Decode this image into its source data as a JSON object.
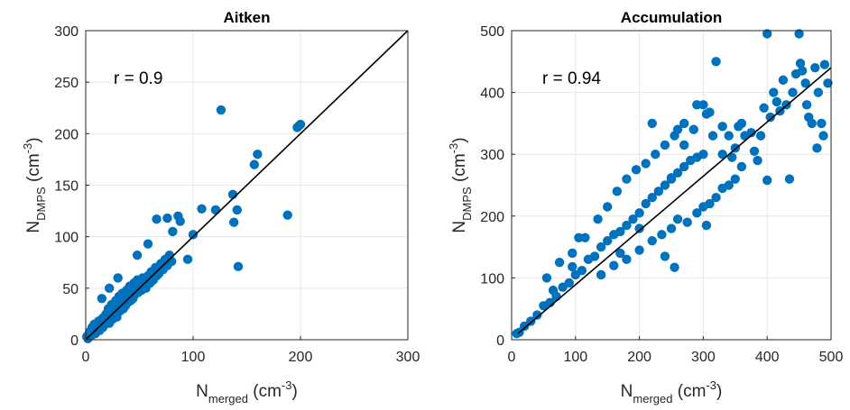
{
  "colors": {
    "marker": "#0072bd",
    "fit_line": "#000000",
    "grid": "#e6e6e6",
    "axis": "#262626"
  },
  "chart_data": [
    {
      "type": "scatter",
      "title": "Aitken",
      "xlabel": {
        "base": "N",
        "sub": "merged",
        "unit_open": " (cm",
        "sup": "-3",
        "unit_close": ")"
      },
      "ylabel": {
        "base": "N",
        "sub": "DMPS",
        "unit_open": " (cm",
        "sup": "-3",
        "unit_close": ")"
      },
      "xlim": [
        0,
        300
      ],
      "ylim": [
        0,
        300
      ],
      "xticks": [
        "0",
        "100",
        "200",
        "300"
      ],
      "yticks": [
        "0",
        "50",
        "100",
        "150",
        "200",
        "250",
        "300"
      ],
      "grid": true,
      "annotation": "r = 0.9",
      "fit_line": {
        "x": [
          0,
          300
        ],
        "y": [
          0,
          300
        ]
      },
      "points": [
        [
          1,
          3
        ],
        [
          2,
          1
        ],
        [
          3,
          6
        ],
        [
          4,
          8
        ],
        [
          5,
          4
        ],
        [
          6,
          12
        ],
        [
          7,
          9
        ],
        [
          8,
          15
        ],
        [
          9,
          6
        ],
        [
          10,
          14
        ],
        [
          11,
          10
        ],
        [
          12,
          18
        ],
        [
          13,
          9
        ],
        [
          14,
          16
        ],
        [
          15,
          20
        ],
        [
          16,
          12
        ],
        [
          17,
          22
        ],
        [
          18,
          15
        ],
        [
          19,
          25
        ],
        [
          20,
          18
        ],
        [
          21,
          30
        ],
        [
          22,
          16
        ],
        [
          23,
          26
        ],
        [
          24,
          34
        ],
        [
          25,
          20
        ],
        [
          26,
          30
        ],
        [
          27,
          25
        ],
        [
          28,
          38
        ],
        [
          29,
          22
        ],
        [
          30,
          32
        ],
        [
          31,
          42
        ],
        [
          32,
          28
        ],
        [
          33,
          35
        ],
        [
          34,
          45
        ],
        [
          35,
          30
        ],
        [
          36,
          40
        ],
        [
          37,
          33
        ],
        [
          38,
          48
        ],
        [
          39,
          36
        ],
        [
          40,
          43
        ],
        [
          41,
          52
        ],
        [
          42,
          38
        ],
        [
          43,
          46
        ],
        [
          44,
          40
        ],
        [
          45,
          55
        ],
        [
          46,
          44
        ],
        [
          47,
          50
        ],
        [
          48,
          58
        ],
        [
          49,
          46
        ],
        [
          50,
          52
        ],
        [
          52,
          48
        ],
        [
          53,
          60
        ],
        [
          55,
          56
        ],
        [
          56,
          50
        ],
        [
          58,
          62
        ],
        [
          60,
          55
        ],
        [
          61,
          66
        ],
        [
          63,
          58
        ],
        [
          65,
          70
        ],
        [
          66,
          62
        ],
        [
          68,
          64
        ],
        [
          70,
          74
        ],
        [
          72,
          68
        ],
        [
          74,
          78
        ],
        [
          76,
          72
        ],
        [
          78,
          82
        ],
        [
          80,
          76
        ],
        [
          30,
          60
        ],
        [
          15,
          40
        ],
        [
          22,
          50
        ],
        [
          48,
          82
        ],
        [
          58,
          93
        ],
        [
          66,
          117
        ],
        [
          76,
          118
        ],
        [
          86,
          120
        ],
        [
          88,
          115
        ],
        [
          81,
          105
        ],
        [
          100,
          102
        ],
        [
          95,
          78
        ],
        [
          108,
          127
        ],
        [
          121,
          126
        ],
        [
          126,
          223
        ],
        [
          137,
          141
        ],
        [
          138,
          114
        ],
        [
          141,
          126
        ],
        [
          142,
          71
        ],
        [
          157,
          170
        ],
        [
          160,
          180
        ],
        [
          188,
          121
        ],
        [
          197,
          206
        ],
        [
          199,
          208
        ],
        [
          200,
          209
        ]
      ]
    },
    {
      "type": "scatter",
      "title": "Accumulation",
      "xlabel": {
        "base": "N",
        "sub": "merged",
        "unit_open": " (cm",
        "sup": "-3",
        "unit_close": ")"
      },
      "ylabel": {
        "base": "N",
        "sub": "DMPS",
        "unit_open": " (cm",
        "sup": "-3",
        "unit_close": ")"
      },
      "xlim": [
        0,
        500
      ],
      "ylim": [
        0,
        500
      ],
      "xticks": [
        "0",
        "100",
        "200",
        "300",
        "400",
        "500"
      ],
      "yticks": [
        "0",
        "100",
        "200",
        "300",
        "400",
        "500"
      ],
      "grid": true,
      "annotation": "r = 0.94",
      "fit_line": {
        "x": [
          10,
          500
        ],
        "y": [
          10,
          440
        ]
      },
      "points": [
        [
          8,
          10
        ],
        [
          12,
          12
        ],
        [
          20,
          22
        ],
        [
          30,
          30
        ],
        [
          40,
          40
        ],
        [
          50,
          55
        ],
        [
          60,
          60
        ],
        [
          65,
          80
        ],
        [
          70,
          70
        ],
        [
          80,
          85
        ],
        [
          90,
          92
        ],
        [
          95,
          118
        ],
        [
          100,
          105
        ],
        [
          105,
          165
        ],
        [
          110,
          112
        ],
        [
          120,
          130
        ],
        [
          130,
          135
        ],
        [
          140,
          150
        ],
        [
          150,
          160
        ],
        [
          160,
          170
        ],
        [
          170,
          175
        ],
        [
          180,
          185
        ],
        [
          190,
          195
        ],
        [
          200,
          205
        ],
        [
          210,
          220
        ],
        [
          220,
          230
        ],
        [
          230,
          240
        ],
        [
          240,
          250
        ],
        [
          250,
          260
        ],
        [
          260,
          270
        ],
        [
          270,
          280
        ],
        [
          280,
          290
        ],
        [
          290,
          295
        ],
        [
          300,
          300
        ],
        [
          55,
          100
        ],
        [
          75,
          125
        ],
        [
          95,
          140
        ],
        [
          115,
          165
        ],
        [
          135,
          195
        ],
        [
          150,
          215
        ],
        [
          165,
          240
        ],
        [
          180,
          260
        ],
        [
          195,
          275
        ],
        [
          210,
          285
        ],
        [
          225,
          300
        ],
        [
          240,
          315
        ],
        [
          255,
          330
        ],
        [
          260,
          340
        ],
        [
          270,
          350
        ],
        [
          285,
          340
        ],
        [
          140,
          105
        ],
        [
          160,
          120
        ],
        [
          180,
          130
        ],
        [
          200,
          145
        ],
        [
          220,
          160
        ],
        [
          235,
          170
        ],
        [
          250,
          180
        ],
        [
          260,
          195
        ],
        [
          275,
          190
        ],
        [
          290,
          205
        ],
        [
          300,
          215
        ],
        [
          310,
          220
        ],
        [
          320,
          230
        ],
        [
          330,
          245
        ],
        [
          340,
          250
        ],
        [
          350,
          260
        ],
        [
          220,
          350
        ],
        [
          255,
          117
        ],
        [
          270,
          315
        ],
        [
          305,
          185
        ],
        [
          310,
          368
        ],
        [
          315,
          330
        ],
        [
          320,
          450
        ],
        [
          330,
          345
        ],
        [
          340,
          330
        ],
        [
          350,
          310
        ],
        [
          355,
          345
        ],
        [
          360,
          350
        ],
        [
          365,
          330
        ],
        [
          375,
          335
        ],
        [
          380,
          305
        ],
        [
          385,
          290
        ],
        [
          390,
          330
        ],
        [
          395,
          375
        ],
        [
          400,
          258
        ],
        [
          400,
          495
        ],
        [
          405,
          360
        ],
        [
          410,
          400
        ],
        [
          415,
          385
        ],
        [
          420,
          370
        ],
        [
          425,
          420
        ],
        [
          430,
          380
        ],
        [
          435,
          260
        ],
        [
          440,
          400
        ],
        [
          445,
          430
        ],
        [
          450,
          495
        ],
        [
          452,
          447
        ],
        [
          455,
          435
        ],
        [
          460,
          415
        ],
        [
          462,
          380
        ],
        [
          465,
          360
        ],
        [
          470,
          350
        ],
        [
          475,
          440
        ],
        [
          478,
          310
        ],
        [
          480,
          400
        ],
        [
          485,
          350
        ],
        [
          488,
          330
        ],
        [
          490,
          445
        ],
        [
          495,
          415
        ],
        [
          240,
          135
        ],
        [
          300,
          380
        ],
        [
          330,
          300
        ],
        [
          345,
          295
        ],
        [
          360,
          280
        ],
        [
          305,
          365
        ],
        [
          250,
          262
        ],
        [
          290,
          380
        ],
        [
          200,
          180
        ],
        [
          170,
          140
        ]
      ]
    }
  ]
}
